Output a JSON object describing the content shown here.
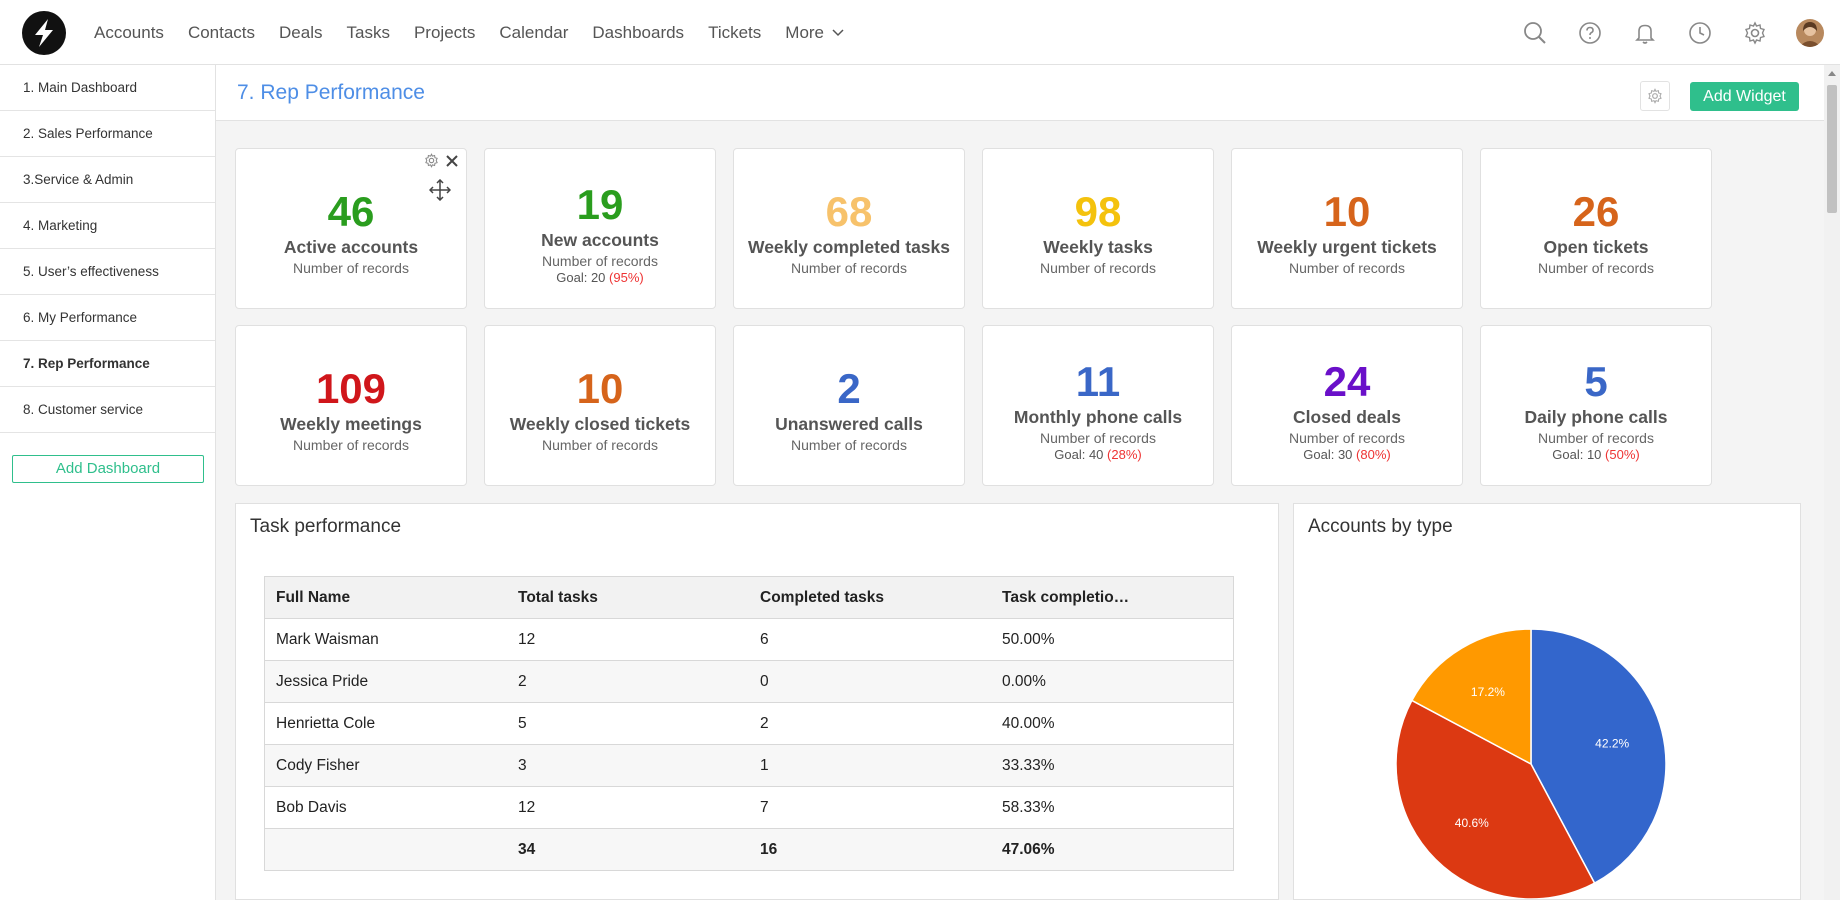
{
  "nav": {
    "items": [
      "Accounts",
      "Contacts",
      "Deals",
      "Tasks",
      "Projects",
      "Calendar",
      "Dashboards",
      "Tickets"
    ],
    "more_label": "More"
  },
  "sidebar": {
    "items": [
      {
        "label": "1. Main Dashboard"
      },
      {
        "label": "2. Sales Performance"
      },
      {
        "label": "3.Service & Admin"
      },
      {
        "label": "4. Marketing"
      },
      {
        "label": "5. User’s effectiveness"
      },
      {
        "label": "6. My Performance"
      },
      {
        "label": "7. Rep Performance"
      },
      {
        "label": "8. Customer service"
      }
    ],
    "add_dashboard": "Add Dashboard"
  },
  "header": {
    "title": "7. Rep Performance",
    "add_widget": "Add Widget"
  },
  "kpis": [
    {
      "value": "46",
      "label": "Active accounts",
      "sub": "Number of records",
      "color": "#2a9d1e"
    },
    {
      "value": "19",
      "label": "New accounts",
      "sub": "Number of records",
      "goal_text": "Goal: 20",
      "goal_pct": "(95%)",
      "color": "#2a9d1e"
    },
    {
      "value": "68",
      "label": "Weekly completed tasks",
      "sub": "Number of records",
      "color": "#f7c26b"
    },
    {
      "value": "98",
      "label": "Weekly tasks",
      "sub": "Number of records",
      "color": "#f4c20d"
    },
    {
      "value": "10",
      "label": "Weekly urgent tickets",
      "sub": "Number of records",
      "color": "#d6641b"
    },
    {
      "value": "26",
      "label": "Open tickets",
      "sub": "Number of records",
      "color": "#d6641b"
    },
    {
      "value": "109",
      "label": "Weekly meetings",
      "sub": "Number of records",
      "color": "#d0161b"
    },
    {
      "value": "10",
      "label": "Weekly closed tickets",
      "sub": "Number of records",
      "color": "#d6641b"
    },
    {
      "value": "2",
      "label": "Unanswered calls",
      "sub": "Number of records",
      "color": "#3a67c7"
    },
    {
      "value": "11",
      "label": "Monthly phone calls",
      "sub": "Number of records",
      "goal_text": "Goal: 40",
      "goal_pct": "(28%)",
      "color": "#3a67c7"
    },
    {
      "value": "24",
      "label": "Closed deals",
      "sub": "Number of records",
      "goal_text": "Goal: 30",
      "goal_pct": "(80%)",
      "color": "#6a10c9"
    },
    {
      "value": "5",
      "label": "Daily phone calls",
      "sub": "Number of records",
      "goal_text": "Goal: 10",
      "goal_pct": "(50%)",
      "color": "#3a67c7"
    }
  ],
  "task_performance": {
    "title": "Task performance",
    "columns": [
      "Full Name",
      "Total tasks",
      "Completed tasks",
      "Task completio…"
    ],
    "rows": [
      [
        "Mark Waisman",
        "12",
        "6",
        "50.00%"
      ],
      [
        "Jessica Pride",
        "2",
        "0",
        "0.00%"
      ],
      [
        "Henrietta Cole",
        "5",
        "2",
        "40.00%"
      ],
      [
        "Cody Fisher",
        "3",
        "1",
        "33.33%"
      ],
      [
        "Bob Davis",
        "12",
        "7",
        "58.33%"
      ]
    ],
    "total": [
      "",
      "34",
      "16",
      "47.06%"
    ]
  },
  "accounts_by_type": {
    "title": "Accounts by type",
    "chart_data": {
      "type": "pie",
      "slices": [
        {
          "value": 42.2,
          "label": "42.2%",
          "color": "#3366cc"
        },
        {
          "value": 40.6,
          "label": "40.6%",
          "color": "#dc3912"
        },
        {
          "value": 17.2,
          "label": "17.2%",
          "color": "#ff9900"
        }
      ]
    }
  }
}
